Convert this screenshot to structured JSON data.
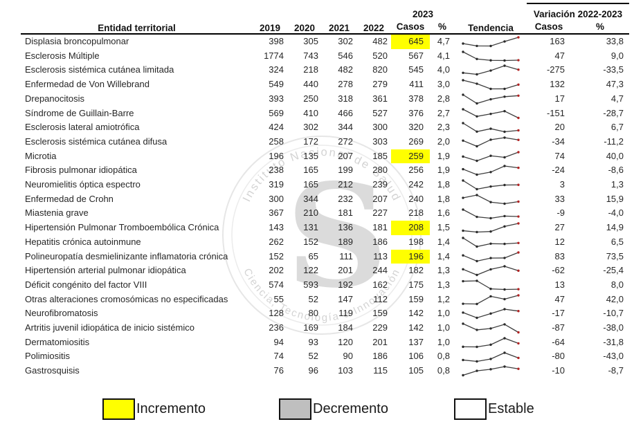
{
  "header": {
    "entity": "Entidad territorial",
    "years": [
      "2019",
      "2020",
      "2021",
      "2022"
    ],
    "year_2023": "2023",
    "casos": "Casos",
    "pct": "%",
    "tendencia": "Tendencia",
    "variacion": "Variación 2022-2023",
    "var_casos": "Casos",
    "var_pct": "%"
  },
  "colors": {
    "increment_highlight": "#FFFF00",
    "decrement_highlight": "#BFBFBF",
    "stable": "#FFFFFF",
    "spark_line": "#3d3d3d",
    "spark_point": "#2b2b2b",
    "spark_last_point": "#b22222",
    "header_rule": "#000000"
  },
  "watermark": {
    "letter": "S",
    "top_text": "Instituto Nacional de Salud",
    "bottom_text": "Ciencia, Tecnología e Innovación"
  },
  "legend": [
    {
      "label": "Incremento",
      "color": "#FFFF00"
    },
    {
      "label": "Decremento",
      "color": "#BFBFBF"
    },
    {
      "label": "Estable",
      "color": "#FFFFFF"
    }
  ],
  "table": {
    "rows": [
      {
        "name": "Displasia broncopulmonar",
        "values": [
          398,
          305,
          302,
          482,
          645
        ],
        "pct": "4,7",
        "highlight": true,
        "var_casos": "163",
        "var_pct": "33,8"
      },
      {
        "name": "Esclerosis Múltiple",
        "values": [
          1774,
          743,
          546,
          520,
          567
        ],
        "pct": "4,1",
        "highlight": false,
        "var_casos": "47",
        "var_pct": "9,0"
      },
      {
        "name": "Esclerosis sistémica cutánea limitada",
        "values": [
          324,
          218,
          482,
          820,
          545
        ],
        "pct": "4,0",
        "highlight": false,
        "var_casos": "-275",
        "var_pct": "-33,5"
      },
      {
        "name": "Enfermedad de Von Willebrand",
        "values": [
          549,
          440,
          278,
          279,
          411
        ],
        "pct": "3,0",
        "highlight": false,
        "var_casos": "132",
        "var_pct": "47,3"
      },
      {
        "name": "Drepanocitosis",
        "values": [
          393,
          250,
          318,
          361,
          378
        ],
        "pct": "2,8",
        "highlight": false,
        "var_casos": "17",
        "var_pct": "4,7"
      },
      {
        "name": "Síndrome de Guillain-Barre",
        "values": [
          569,
          410,
          466,
          527,
          376
        ],
        "pct": "2,7",
        "highlight": false,
        "var_casos": "-151",
        "var_pct": "-28,7"
      },
      {
        "name": "Esclerosis lateral amiotrófica",
        "values": [
          424,
          302,
          344,
          300,
          320
        ],
        "pct": "2,3",
        "highlight": false,
        "var_casos": "20",
        "var_pct": "6,7"
      },
      {
        "name": "Esclerosis sistémica cutánea difusa",
        "values": [
          258,
          172,
          272,
          303,
          269
        ],
        "pct": "2,0",
        "highlight": false,
        "var_casos": "-34",
        "var_pct": "-11,2"
      },
      {
        "name": "Microtia",
        "values": [
          196,
          135,
          207,
          185,
          259
        ],
        "pct": "1,9",
        "highlight": true,
        "var_casos": "74",
        "var_pct": "40,0"
      },
      {
        "name": "Fibrosis pulmonar idiopática",
        "values": [
          238,
          165,
          199,
          280,
          256
        ],
        "pct": "1,9",
        "highlight": false,
        "var_casos": "-24",
        "var_pct": "-8,6"
      },
      {
        "name": "Neuromielitis óptica espectro",
        "values": [
          319,
          165,
          212,
          239,
          242
        ],
        "pct": "1,8",
        "highlight": false,
        "var_casos": "3",
        "var_pct": "1,3"
      },
      {
        "name": "Enfermedad de Crohn",
        "values": [
          300,
          344,
          232,
          207,
          240
        ],
        "pct": "1,8",
        "highlight": false,
        "var_casos": "33",
        "var_pct": "15,9"
      },
      {
        "name": "Miastenia grave",
        "values": [
          367,
          210,
          181,
          227,
          218
        ],
        "pct": "1,6",
        "highlight": false,
        "var_casos": "-9",
        "var_pct": "-4,0"
      },
      {
        "name": "Hipertensión Pulmonar Tromboembólica Crónica",
        "values": [
          143,
          131,
          136,
          181,
          208
        ],
        "pct": "1,5",
        "highlight": true,
        "var_casos": "27",
        "var_pct": "14,9"
      },
      {
        "name": "Hepatitis crónica autoinmune",
        "values": [
          262,
          152,
          189,
          186,
          198
        ],
        "pct": "1,4",
        "highlight": false,
        "var_casos": "12",
        "var_pct": "6,5"
      },
      {
        "name": "Polineuropatía desmielinizante inflamatoria crónica",
        "values": [
          152,
          65,
          111,
          113,
          196
        ],
        "pct": "1,4",
        "highlight": true,
        "var_casos": "83",
        "var_pct": "73,5"
      },
      {
        "name": "Hipertensión arterial pulmonar idiopática",
        "values": [
          202,
          122,
          201,
          244,
          182
        ],
        "pct": "1,3",
        "highlight": false,
        "var_casos": "-62",
        "var_pct": "-25,4"
      },
      {
        "name": "Déficit congénito del factor VIII",
        "values": [
          574,
          593,
          192,
          162,
          175
        ],
        "pct": "1,3",
        "highlight": false,
        "var_casos": "13",
        "var_pct": "8,0"
      },
      {
        "name": "Otras alteraciones cromosómicas no especificadas",
        "values": [
          55,
          52,
          147,
          112,
          159
        ],
        "pct": "1,2",
        "highlight": false,
        "var_casos": "47",
        "var_pct": "42,0"
      },
      {
        "name": "Neurofibromatosis",
        "values": [
          128,
          80,
          119,
          159,
          142
        ],
        "pct": "1,0",
        "highlight": false,
        "var_casos": "-17",
        "var_pct": "-10,7"
      },
      {
        "name": "Artritis juvenil idiopática de inicio sistémico",
        "values": [
          236,
          169,
          184,
          229,
          142
        ],
        "pct": "1,0",
        "highlight": false,
        "var_casos": "-87",
        "var_pct": "-38,0"
      },
      {
        "name": "Dermatomiositis",
        "values": [
          94,
          93,
          120,
          201,
          137
        ],
        "pct": "1,0",
        "highlight": false,
        "var_casos": "-64",
        "var_pct": "-31,8"
      },
      {
        "name": "Polimiositis",
        "values": [
          74,
          52,
          90,
          186,
          106
        ],
        "pct": "0,8",
        "highlight": false,
        "var_casos": "-80",
        "var_pct": "-43,0"
      },
      {
        "name": "Gastrosquisis",
        "values": [
          76,
          96,
          103,
          115,
          105
        ],
        "pct": "0,8",
        "highlight": false,
        "var_casos": "-10",
        "var_pct": "-8,7"
      }
    ]
  }
}
